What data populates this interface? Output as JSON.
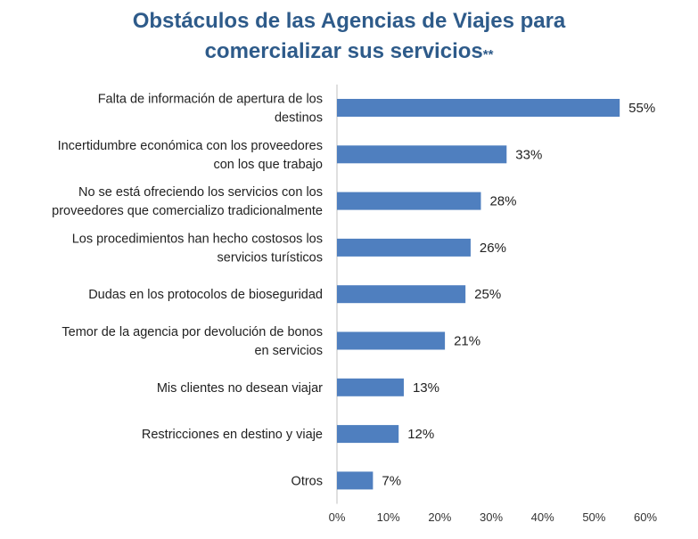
{
  "chart_data": {
    "type": "bar",
    "orientation": "horizontal",
    "title_line1": "Obstáculos de las Agencias de Viajes para",
    "title_line2": "comercializar sus servicios",
    "title_suffix": "**",
    "categories": [
      [
        "Falta de información de apertura de los",
        "destinos"
      ],
      [
        "Incertidumbre económica con los proveedores",
        "con los que trabajo"
      ],
      [
        "No se está ofreciendo los servicios con los",
        "proveedores que comercializo tradicionalmente"
      ],
      [
        "Los procedimientos han hecho costosos los",
        "servicios turísticos"
      ],
      [
        "Dudas en los protocolos de bioseguridad"
      ],
      [
        "Temor de la agencia por devolución de bonos",
        "en servicios"
      ],
      [
        "Mis clientes no desean viajar"
      ],
      [
        "Restricciones en destino y viaje"
      ],
      [
        "Otros"
      ]
    ],
    "values": [
      55,
      33,
      28,
      26,
      25,
      21,
      13,
      12,
      7
    ],
    "value_labels": [
      "55%",
      "33%",
      "28%",
      "26%",
      "25%",
      "21%",
      "13%",
      "12%",
      "7%"
    ],
    "xlim": [
      0,
      60
    ],
    "x_ticks": [
      0,
      10,
      20,
      30,
      40,
      50,
      60
    ],
    "x_tick_labels": [
      "0%",
      "10%",
      "20%",
      "30%",
      "40%",
      "50%",
      "60%"
    ],
    "grid": false,
    "legend": "none",
    "bar_color": "#4f7fbf"
  }
}
